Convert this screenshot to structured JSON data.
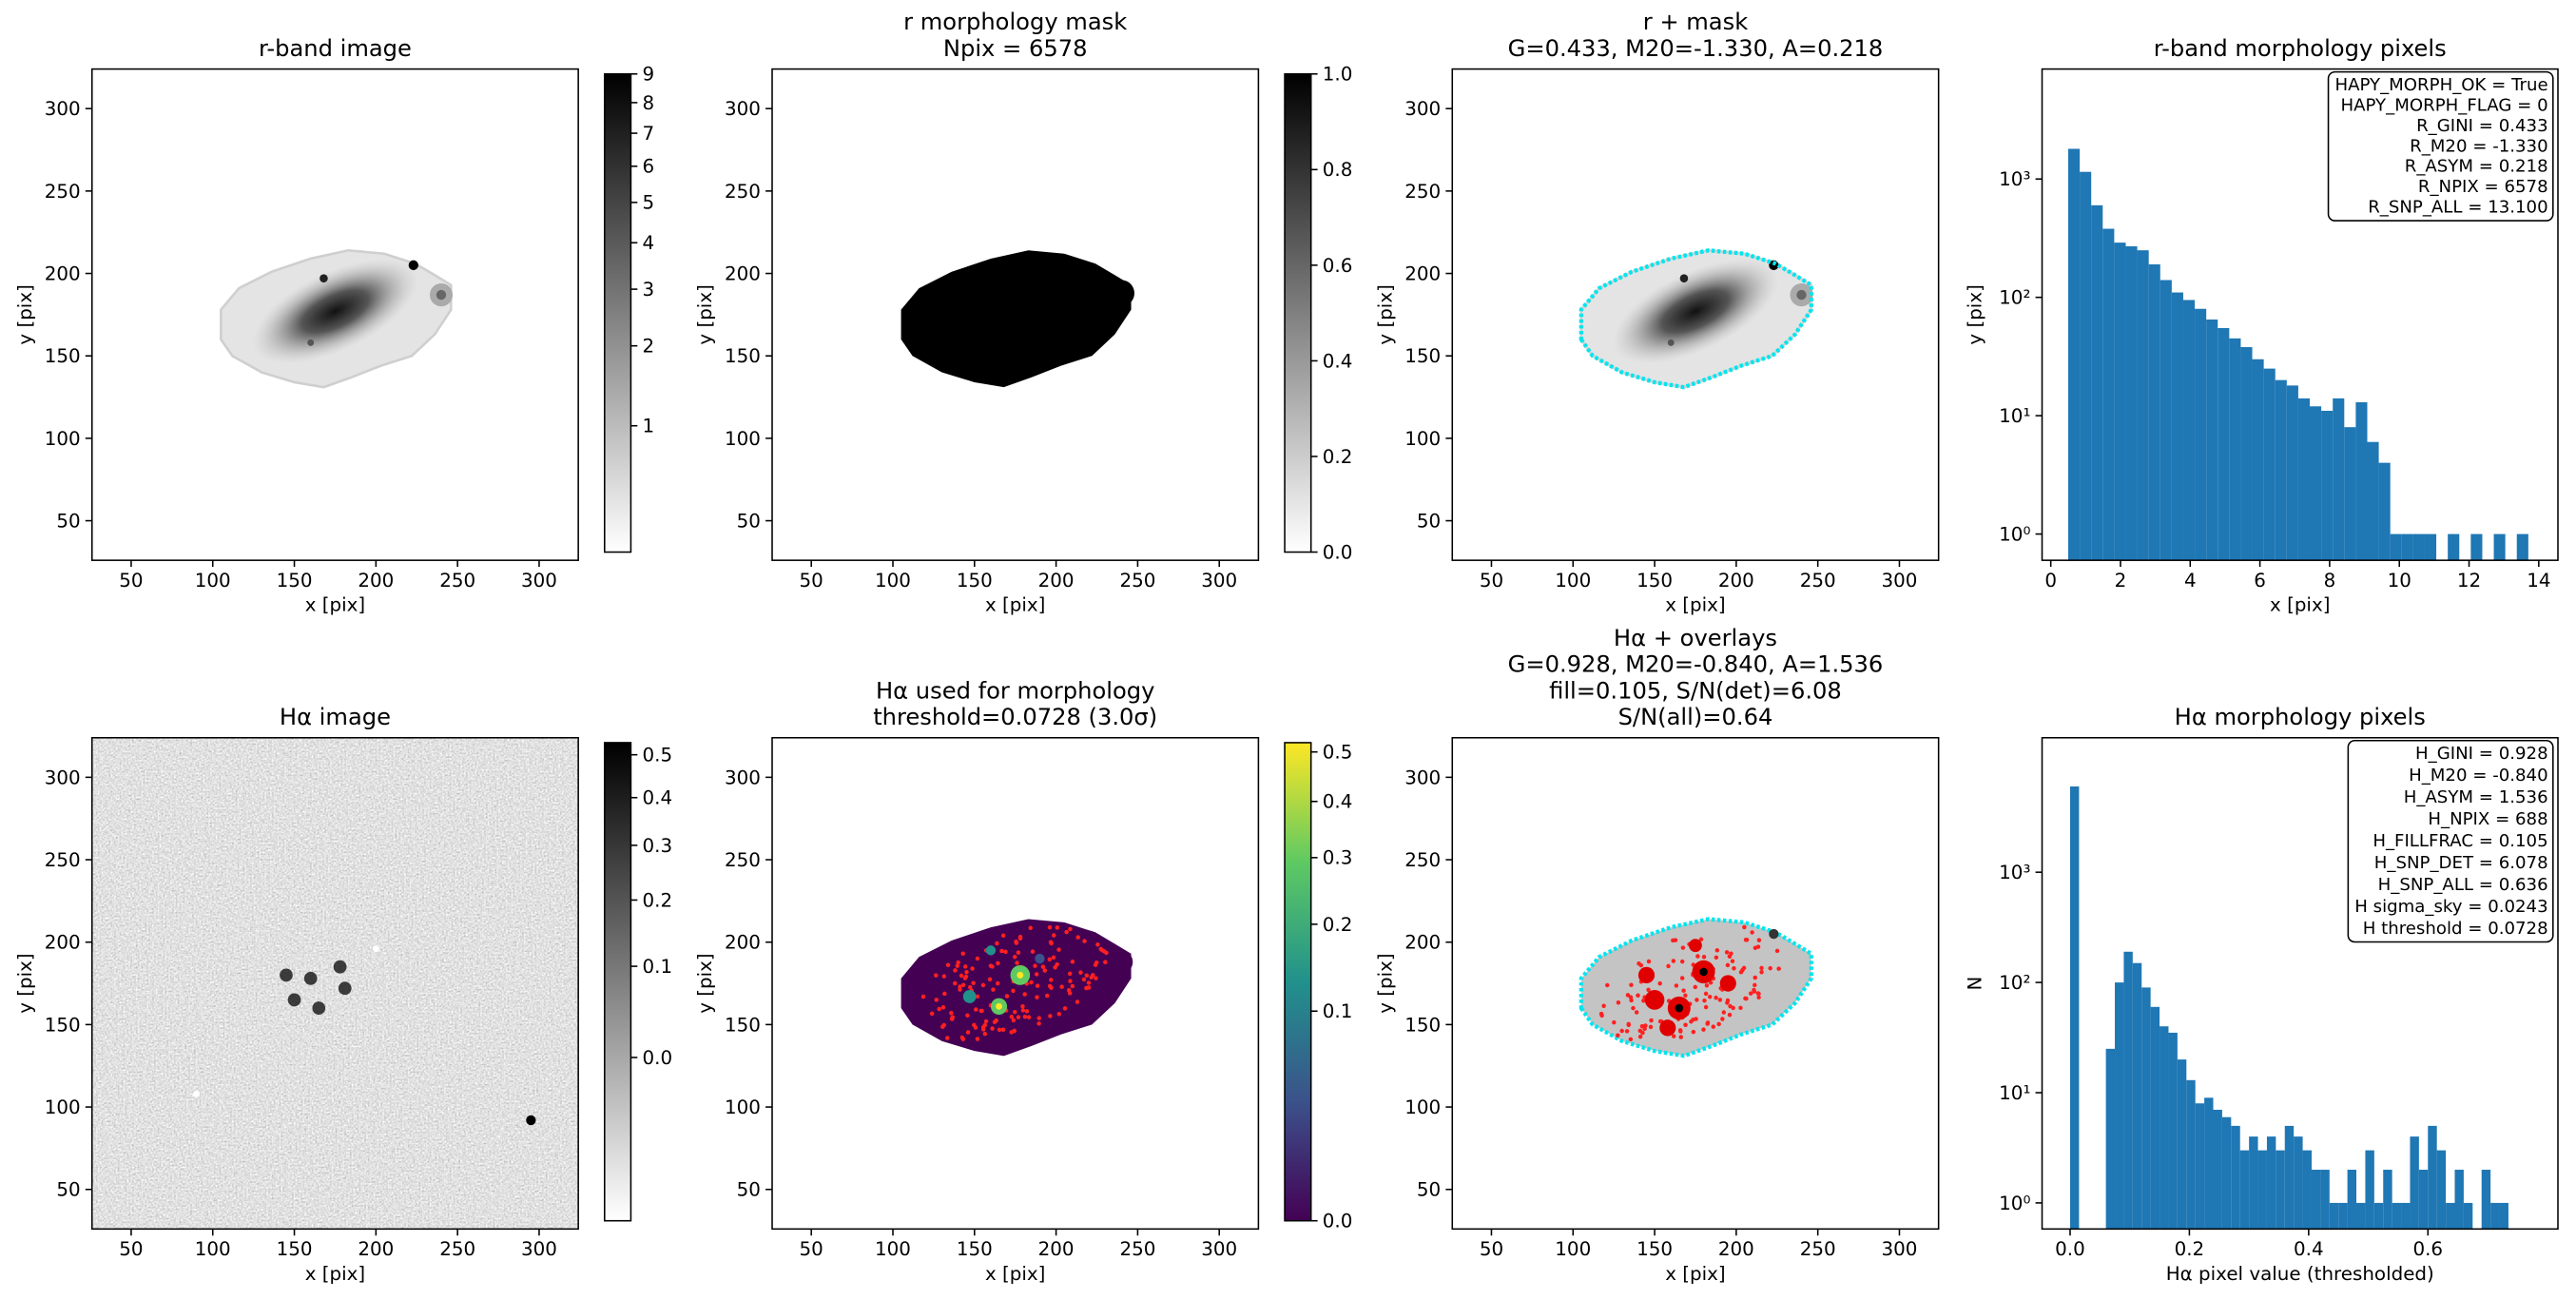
{
  "chart_data": [
    {
      "type": "image",
      "title": [
        "r-band image"
      ],
      "xlabel": "x [pix]",
      "ylabel": "y [pix]",
      "xlim": [
        26,
        324
      ],
      "ylim": [
        26,
        324
      ],
      "xticks": [
        50,
        100,
        150,
        200,
        250,
        300
      ],
      "yticks": [
        50,
        100,
        150,
        200,
        250,
        300
      ],
      "colorbar": {
        "scale": "sqrt",
        "lim": [
          0.4,
          9
        ],
        "ticks": [
          1,
          2,
          3,
          4,
          5,
          6,
          7,
          8,
          9
        ],
        "colors": [
          "#ffffff",
          "#000000"
        ]
      }
    },
    {
      "type": "image",
      "title": [
        "r morphology mask",
        "Npix = 6578"
      ],
      "xlabel": "x [pix]",
      "ylabel": "y [pix]",
      "xlim": [
        26,
        324
      ],
      "ylim": [
        26,
        324
      ],
      "xticks": [
        50,
        100,
        150,
        200,
        250,
        300
      ],
      "yticks": [
        50,
        100,
        150,
        200,
        250,
        300
      ],
      "colorbar": {
        "scale": "linear",
        "lim": [
          0,
          1
        ],
        "ticks": [
          {
            "value": 0,
            "label": "0.0"
          },
          0.2,
          0.4,
          0.6,
          0.8,
          {
            "value": 1,
            "label": "1.0"
          }
        ],
        "colors": [
          "#ffffff",
          "#000000"
        ]
      }
    },
    {
      "type": "image",
      "title": [
        "r + mask",
        "G=0.433, M20=-1.330, A=0.218"
      ],
      "xlabel": "x [pix]",
      "ylabel": "y [pix]",
      "xlim": [
        26,
        324
      ],
      "ylim": [
        26,
        324
      ],
      "xticks": [
        50,
        100,
        150,
        200,
        250,
        300
      ],
      "yticks": [
        50,
        100,
        150,
        200,
        250,
        300
      ]
    },
    {
      "type": "histogram",
      "title": [
        "r-band morphology pixels"
      ],
      "xlabel": "x [pix]",
      "ylabel": "y [pix]",
      "xlim": [
        -0.25,
        14.55
      ],
      "ylim": [
        0.6,
        8500
      ],
      "yscale": "log",
      "xticks": [
        0,
        2,
        4,
        6,
        8,
        10,
        12,
        14
      ],
      "yticks": [
        {
          "value": 1,
          "label": "10⁰"
        },
        {
          "value": 10,
          "label": "10¹"
        },
        {
          "value": 100,
          "label": "10²"
        },
        {
          "value": 1000,
          "label": "10³"
        }
      ],
      "bins": [
        0.5,
        0.83,
        1.16,
        1.49,
        1.82,
        2.15,
        2.48,
        2.81,
        3.14,
        3.47,
        3.8,
        4.13,
        4.46,
        4.79,
        5.12,
        5.45,
        5.78,
        6.11,
        6.44,
        6.77,
        7.1,
        7.43,
        7.76,
        8.09,
        8.42,
        8.75,
        9.08,
        9.41,
        9.74,
        10.07,
        10.4,
        10.73,
        11.06,
        11.39,
        11.72,
        12.05,
        12.38,
        12.71,
        13.04,
        13.37,
        13.7
      ],
      "values": [
        1800,
        1150,
        600,
        380,
        290,
        270,
        250,
        190,
        140,
        110,
        95,
        80,
        65,
        55,
        45,
        38,
        30,
        25,
        20,
        18,
        14,
        12,
        11,
        14,
        8,
        13,
        6,
        4,
        1,
        1,
        1,
        1,
        0,
        1,
        0,
        1,
        0,
        1,
        0,
        1
      ],
      "color": "#1f77b4",
      "annotation": [
        "HAPY_MORPH_OK = True",
        "HAPY_MORPH_FLAG = 0",
        "R_GINI = 0.433",
        "R_M20 = -1.330",
        "R_ASYM = 0.218",
        "R_NPIX = 6578",
        "R_SNP_ALL = 13.100"
      ]
    },
    {
      "type": "image",
      "title": [
        "Hα image"
      ],
      "xlabel": "x [pix]",
      "ylabel": "y [pix]",
      "xlim": [
        26,
        324
      ],
      "ylim": [
        26,
        324
      ],
      "xticks": [
        50,
        100,
        150,
        200,
        250,
        300
      ],
      "yticks": [
        50,
        100,
        150,
        200,
        250,
        300
      ],
      "colorbar": {
        "scale": "sqrt",
        "lim": [
          -0.07,
          0.53
        ],
        "ticks": [
          {
            "value": 0,
            "label": "0.0"
          },
          0.1,
          0.2,
          0.3,
          0.4,
          0.5
        ],
        "colors": [
          "#ffffff",
          "#000000"
        ]
      }
    },
    {
      "type": "image",
      "title": [
        "Hα used for morphology",
        "threshold=0.0728 (3.0σ)"
      ],
      "xlabel": "x [pix]",
      "ylabel": "y [pix]",
      "xlim": [
        26,
        324
      ],
      "ylim": [
        26,
        324
      ],
      "xticks": [
        50,
        100,
        150,
        200,
        250,
        300
      ],
      "yticks": [
        50,
        100,
        150,
        200,
        250,
        300
      ],
      "colorbar": {
        "scale": "sqrt",
        "lim": [
          0,
          0.52
        ],
        "ticks": [
          {
            "value": 0,
            "label": "0.0"
          },
          0.1,
          0.2,
          0.3,
          0.4,
          0.5
        ],
        "colors": [
          "#440154",
          "#3b528b",
          "#21918c",
          "#5ec962",
          "#fde725"
        ]
      }
    },
    {
      "type": "image",
      "title": [
        "Hα + overlays",
        "G=0.928, M20=-0.840, A=1.536",
        "fill=0.105, S/N(det)=6.08",
        "S/N(all)=0.64"
      ],
      "xlabel": "x [pix]",
      "ylabel": "y [pix]",
      "xlim": [
        26,
        324
      ],
      "ylim": [
        26,
        324
      ],
      "xticks": [
        50,
        100,
        150,
        200,
        250,
        300
      ],
      "yticks": [
        50,
        100,
        150,
        200,
        250,
        300
      ]
    },
    {
      "type": "histogram",
      "title": [
        "Hα morphology pixels"
      ],
      "xlabel": "Hα pixel value (thresholded)",
      "ylabel": "N",
      "xlim": [
        -0.047,
        0.818
      ],
      "ylim": [
        0.58,
        16600
      ],
      "yscale": "log",
      "xticks": [
        {
          "value": 0,
          "label": "0.0"
        },
        0.2,
        0.4,
        0.6
      ],
      "yticks": [
        {
          "value": 1,
          "label": "10⁰"
        },
        {
          "value": 10,
          "label": "10¹"
        },
        {
          "value": 100,
          "label": "10²"
        },
        {
          "value": 1000,
          "label": "10³"
        }
      ],
      "bins": [
        0,
        0.015,
        0.03,
        0.045,
        0.06,
        0.075,
        0.09,
        0.105,
        0.12,
        0.135,
        0.15,
        0.165,
        0.18,
        0.195,
        0.21,
        0.225,
        0.24,
        0.255,
        0.27,
        0.285,
        0.3,
        0.315,
        0.33,
        0.345,
        0.36,
        0.375,
        0.39,
        0.405,
        0.42,
        0.435,
        0.45,
        0.465,
        0.48,
        0.495,
        0.51,
        0.525,
        0.54,
        0.555,
        0.57,
        0.585,
        0.6,
        0.615,
        0.63,
        0.645,
        0.66,
        0.675,
        0.69,
        0.705,
        0.72,
        0.735
      ],
      "values": [
        6000,
        0,
        0,
        0,
        25,
        100,
        190,
        150,
        90,
        60,
        40,
        35,
        20,
        13,
        8,
        9,
        7,
        6,
        5,
        3,
        4,
        3,
        4,
        3,
        5,
        4,
        3,
        2,
        2,
        1,
        1,
        2,
        1,
        3,
        1,
        2,
        1,
        1,
        4,
        2,
        5,
        3,
        1,
        2,
        1,
        0,
        2,
        1,
        1
      ],
      "color": "#1f77b4",
      "annotation": [
        "H_GINI = 0.928",
        "H_M20 = -0.840",
        "H_ASYM = 1.536",
        "H_NPIX = 688",
        "H_FILLFRAC = 0.105",
        "H_SNP_DET = 6.078",
        "H_SNP_ALL = 0.636",
        "H sigma_sky = 0.0243",
        "H threshold = 0.0728"
      ]
    }
  ]
}
